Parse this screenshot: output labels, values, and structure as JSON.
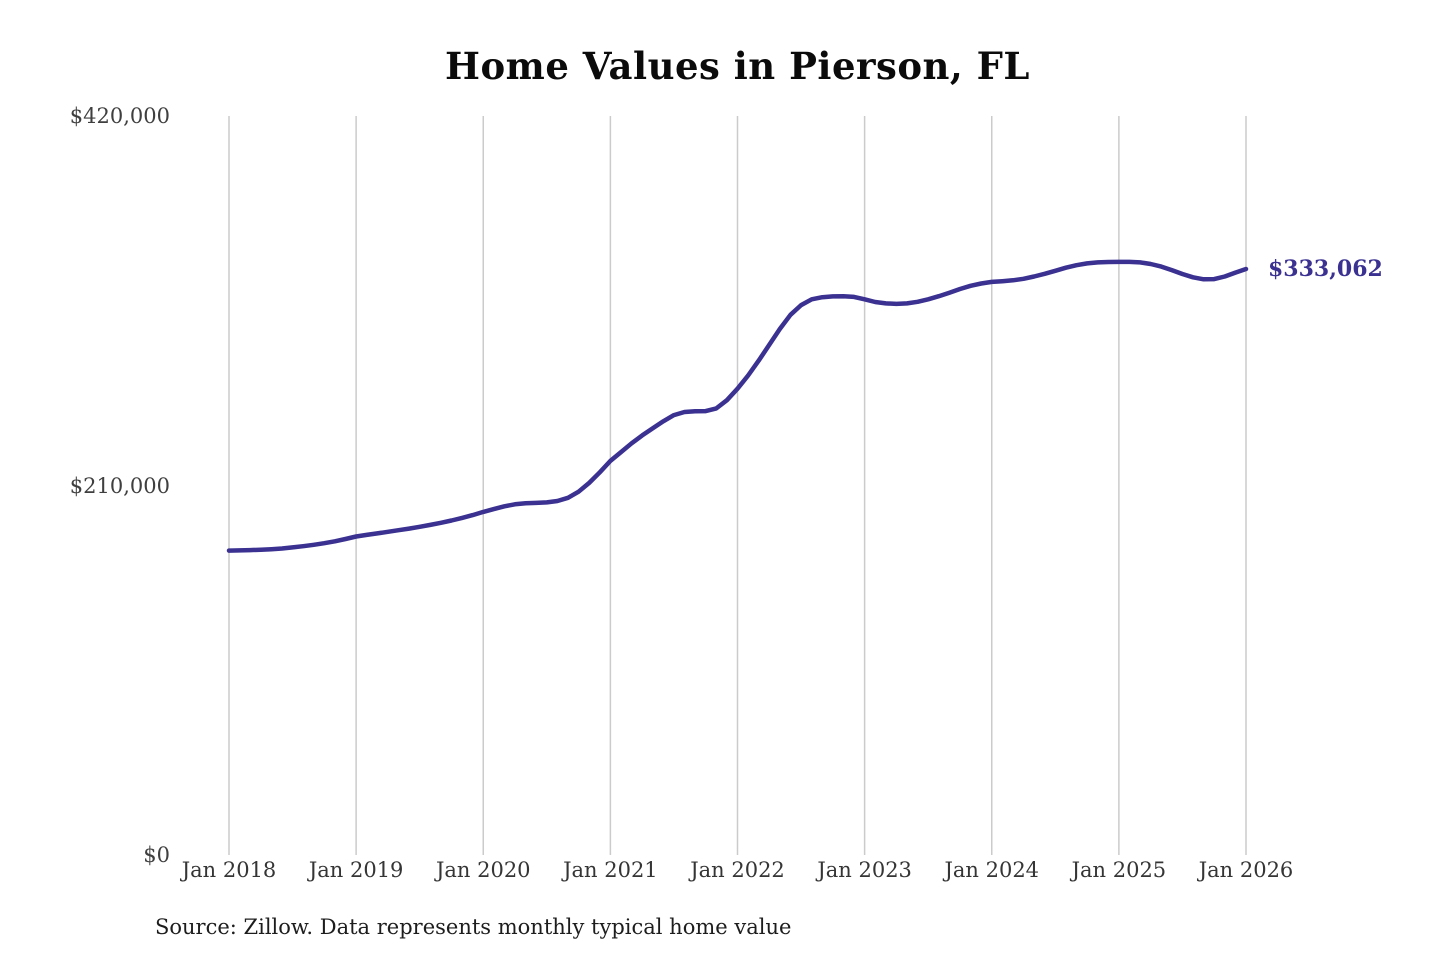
{
  "chart": {
    "title": "Home Values in Pierson, FL",
    "end_label": "$333,062",
    "source": "Source: Zillow. Data represents monthly typical home value",
    "accent_color": "#3a3191",
    "grid_color": "#cbcbcb",
    "title_color": "#0b0b0b",
    "axis_label_color": "#3f3f3f"
  },
  "chart_data": {
    "type": "line",
    "title": "Home Values in Pierson, FL",
    "xlabel": "",
    "ylabel": "",
    "ylim": [
      0,
      420000
    ],
    "y_tick_values": [
      0,
      210000,
      420000
    ],
    "y_tick_labels": [
      "$0",
      "$210,000",
      "$420,000"
    ],
    "x_tick_labels": [
      "Jan 2018",
      "Jan 2019",
      "Jan 2020",
      "Jan 2021",
      "Jan 2022",
      "Jan 2023",
      "Jan 2024",
      "Jan 2025",
      "Jan 2026"
    ],
    "x_range": [
      "2018-01",
      "2026-01"
    ],
    "frequency": "monthly",
    "grid": "vertical-only",
    "legend_position": "none",
    "last_value": 333062,
    "last_value_label": "$333,062",
    "series": [
      {
        "name": "Typical home value (USD)",
        "values": [
          173000,
          173100,
          173300,
          173500,
          173800,
          174200,
          174800,
          175500,
          176300,
          177200,
          178300,
          179600,
          181000,
          181900,
          182800,
          183700,
          184600,
          185500,
          186500,
          187600,
          188800,
          190100,
          191600,
          193200,
          195000,
          196600,
          198200,
          199300,
          199900,
          200100,
          200400,
          201200,
          203000,
          206500,
          211500,
          217500,
          224000,
          229000,
          234000,
          238500,
          242500,
          246500,
          250000,
          251800,
          252200,
          252300,
          253800,
          258500,
          265000,
          272500,
          281000,
          290000,
          299000,
          307000,
          312500,
          315800,
          317000,
          317500,
          317600,
          317200,
          315800,
          314300,
          313500,
          313200,
          313500,
          314400,
          315800,
          317600,
          319600,
          321700,
          323500,
          324800,
          325700,
          326100,
          326600,
          327500,
          328800,
          330300,
          332000,
          333800,
          335200,
          336200,
          336800,
          337000,
          337100,
          337100,
          336800,
          335900,
          334400,
          332400,
          330200,
          328300,
          327200,
          327300,
          328800,
          331000,
          333062
        ]
      }
    ]
  }
}
